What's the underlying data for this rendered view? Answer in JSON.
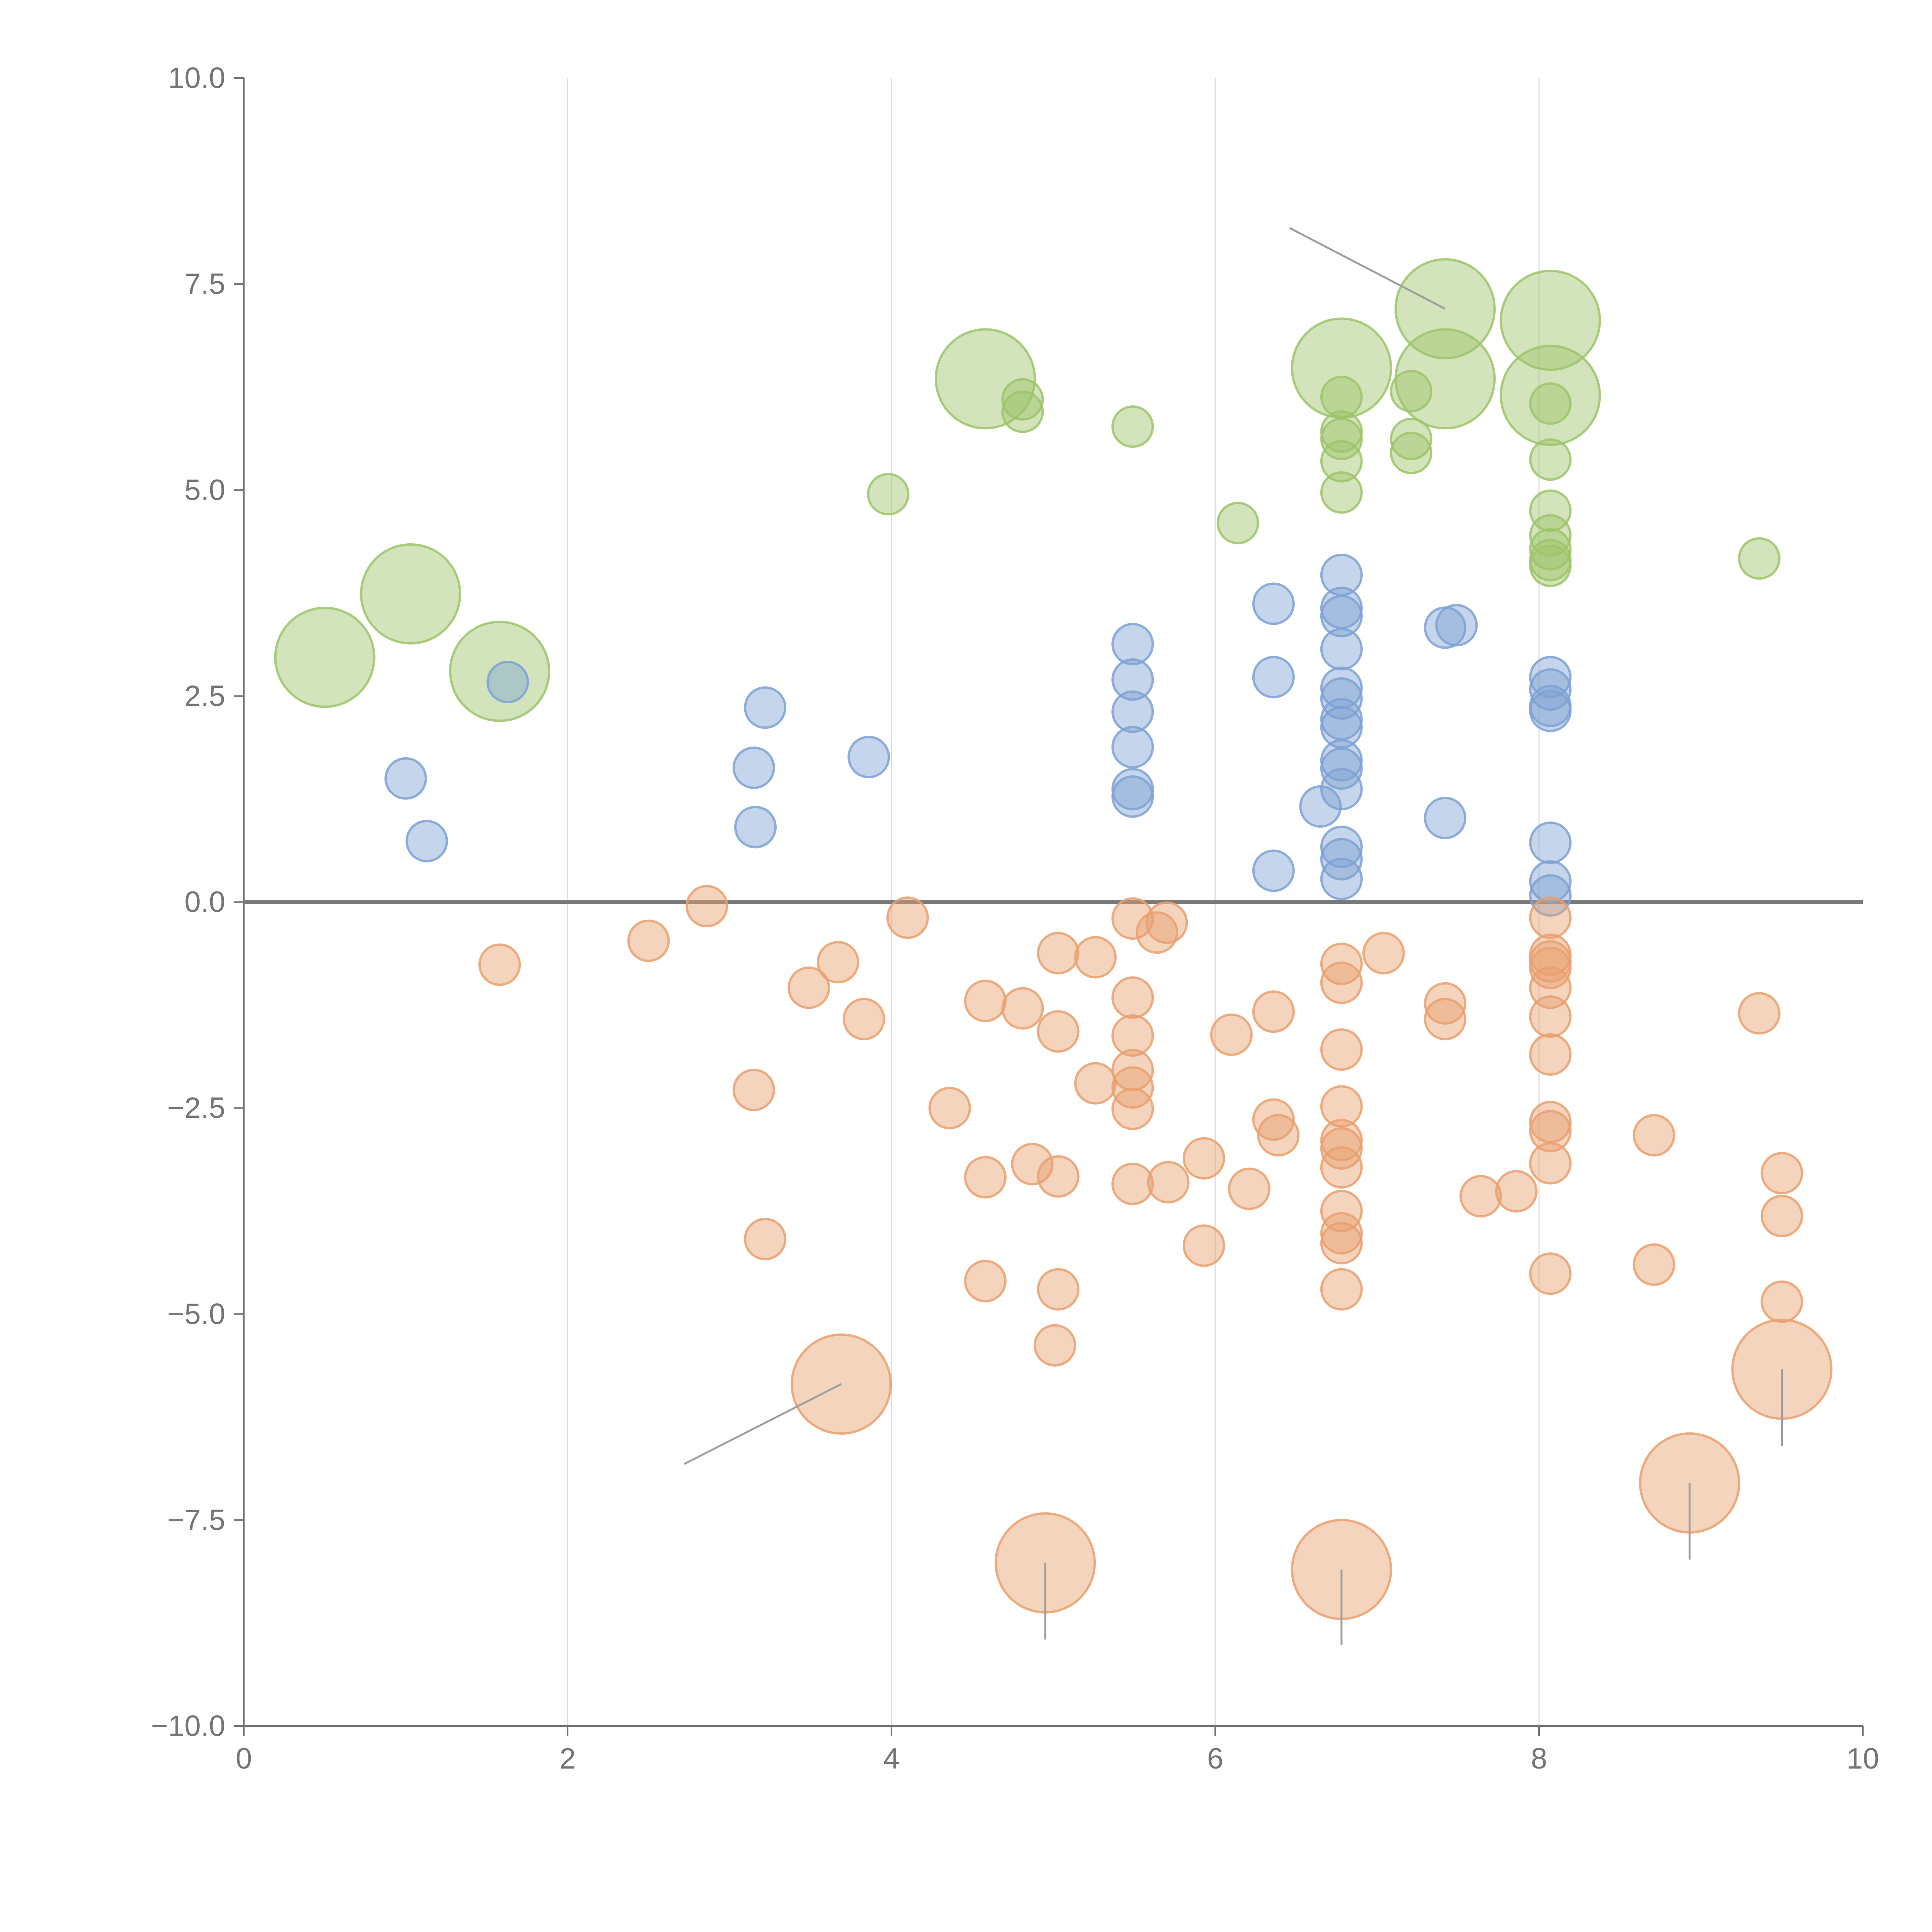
{
  "chart_data": {
    "type": "scatter",
    "title": "",
    "xlabel": "",
    "ylabel": "",
    "xlim": [
      0,
      10
    ],
    "ylim": [
      -10,
      10
    ],
    "grid": "vertical",
    "legend": "none",
    "x_ticks": [
      {
        "value": 0,
        "label": "0"
      },
      {
        "value": 2,
        "label": "2"
      },
      {
        "value": 4,
        "label": "4"
      },
      {
        "value": 6,
        "label": "6"
      },
      {
        "value": 8,
        "label": "8"
      },
      {
        "value": 10,
        "label": "10"
      }
    ],
    "y_ticks": [
      {
        "value": 10,
        "label": "10.0"
      },
      {
        "value": 7.5,
        "label": "7.5"
      },
      {
        "value": 5,
        "label": "5.0"
      },
      {
        "value": 2.5,
        "label": "2.5"
      },
      {
        "value": 0,
        "label": "0.0"
      },
      {
        "value": -2.5,
        "label": "−2.5"
      },
      {
        "value": -5,
        "label": "−5.0"
      },
      {
        "value": -7.5,
        "label": "−7.5"
      },
      {
        "value": -10,
        "label": "−10.0"
      }
    ],
    "zero_line": 0,
    "series": [
      {
        "name": "green",
        "color": "#9dc46a",
        "points": [
          {
            "x": 0.5,
            "y": 2.97,
            "s": "L"
          },
          {
            "x": 1.03,
            "y": 3.74,
            "s": "L"
          },
          {
            "x": 1.58,
            "y": 2.8,
            "s": "L"
          },
          {
            "x": 3.98,
            "y": 4.95,
            "s": "S"
          },
          {
            "x": 4.58,
            "y": 6.35,
            "s": "L"
          },
          {
            "x": 4.81,
            "y": 6.1,
            "s": "S"
          },
          {
            "x": 4.81,
            "y": 5.95,
            "s": "S"
          },
          {
            "x": 5.49,
            "y": 5.77,
            "s": "S"
          },
          {
            "x": 6.14,
            "y": 4.6,
            "s": "S"
          },
          {
            "x": 6.78,
            "y": 6.48,
            "s": "L"
          },
          {
            "x": 6.78,
            "y": 6.13,
            "s": "S"
          },
          {
            "x": 6.78,
            "y": 5.71,
            "s": "S"
          },
          {
            "x": 6.78,
            "y": 5.62,
            "s": "S"
          },
          {
            "x": 6.78,
            "y": 5.35,
            "s": "S"
          },
          {
            "x": 6.78,
            "y": 4.97,
            "s": "S"
          },
          {
            "x": 7.21,
            "y": 6.2,
            "s": "S"
          },
          {
            "x": 7.21,
            "y": 5.62,
            "s": "S"
          },
          {
            "x": 7.21,
            "y": 5.45,
            "s": "S"
          },
          {
            "x": 7.42,
            "y": 7.2,
            "s": "L"
          },
          {
            "x": 7.42,
            "y": 6.35,
            "s": "L"
          },
          {
            "x": 8.07,
            "y": 7.06,
            "s": "L"
          },
          {
            "x": 8.07,
            "y": 6.15,
            "s": "L"
          },
          {
            "x": 8.07,
            "y": 6.05,
            "s": "S"
          },
          {
            "x": 8.07,
            "y": 5.37,
            "s": "S"
          },
          {
            "x": 8.07,
            "y": 4.75,
            "s": "S"
          },
          {
            "x": 8.07,
            "y": 4.45,
            "s": "S"
          },
          {
            "x": 8.07,
            "y": 4.28,
            "s": "S"
          },
          {
            "x": 8.07,
            "y": 4.15,
            "s": "S"
          },
          {
            "x": 8.07,
            "y": 4.08,
            "s": "S"
          },
          {
            "x": 9.36,
            "y": 4.17,
            "s": "S"
          }
        ]
      },
      {
        "name": "blue",
        "color": "#7ea1d3",
        "points": [
          {
            "x": 1.0,
            "y": 1.5,
            "s": "S"
          },
          {
            "x": 1.13,
            "y": 0.74,
            "s": "S"
          },
          {
            "x": 1.63,
            "y": 2.67,
            "s": "S"
          },
          {
            "x": 3.15,
            "y": 1.63,
            "s": "S"
          },
          {
            "x": 3.16,
            "y": 0.91,
            "s": "S"
          },
          {
            "x": 3.22,
            "y": 2.36,
            "s": "S"
          },
          {
            "x": 3.86,
            "y": 1.76,
            "s": "S"
          },
          {
            "x": 5.49,
            "y": 3.13,
            "s": "S"
          },
          {
            "x": 5.49,
            "y": 2.7,
            "s": "S"
          },
          {
            "x": 5.49,
            "y": 2.31,
            "s": "S"
          },
          {
            "x": 5.49,
            "y": 1.88,
            "s": "S"
          },
          {
            "x": 5.49,
            "y": 1.37,
            "s": "S"
          },
          {
            "x": 5.49,
            "y": 1.28,
            "s": "S"
          },
          {
            "x": 6.36,
            "y": 3.62,
            "s": "S"
          },
          {
            "x": 6.36,
            "y": 2.73,
            "s": "S"
          },
          {
            "x": 6.36,
            "y": 0.38,
            "s": "S"
          },
          {
            "x": 6.65,
            "y": 1.16,
            "s": "S"
          },
          {
            "x": 6.78,
            "y": 3.97,
            "s": "S"
          },
          {
            "x": 6.78,
            "y": 3.57,
            "s": "S"
          },
          {
            "x": 6.78,
            "y": 3.47,
            "s": "S"
          },
          {
            "x": 6.78,
            "y": 3.07,
            "s": "S"
          },
          {
            "x": 6.78,
            "y": 2.6,
            "s": "S"
          },
          {
            "x": 6.78,
            "y": 2.47,
            "s": "S"
          },
          {
            "x": 6.78,
            "y": 2.22,
            "s": "S"
          },
          {
            "x": 6.78,
            "y": 2.12,
            "s": "S"
          },
          {
            "x": 6.78,
            "y": 1.72,
            "s": "S"
          },
          {
            "x": 6.78,
            "y": 1.62,
            "s": "S"
          },
          {
            "x": 6.78,
            "y": 1.37,
            "s": "S"
          },
          {
            "x": 6.78,
            "y": 0.67,
            "s": "S"
          },
          {
            "x": 6.78,
            "y": 0.52,
            "s": "S"
          },
          {
            "x": 6.78,
            "y": 0.28,
            "s": "S"
          },
          {
            "x": 7.42,
            "y": 3.33,
            "s": "S"
          },
          {
            "x": 7.49,
            "y": 3.36,
            "s": "S"
          },
          {
            "x": 7.42,
            "y": 1.02,
            "s": "S"
          },
          {
            "x": 8.07,
            "y": 2.73,
            "s": "S"
          },
          {
            "x": 8.07,
            "y": 2.58,
            "s": "S"
          },
          {
            "x": 8.07,
            "y": 2.38,
            "s": "S"
          },
          {
            "x": 8.07,
            "y": 2.32,
            "s": "S"
          },
          {
            "x": 8.07,
            "y": 0.72,
            "s": "S"
          },
          {
            "x": 8.07,
            "y": 0.25,
            "s": "S"
          },
          {
            "x": 8.07,
            "y": 0.08,
            "s": "S"
          }
        ]
      },
      {
        "name": "orange",
        "color": "#e9a06e",
        "points": [
          {
            "x": 1.58,
            "y": -0.76,
            "s": "S"
          },
          {
            "x": 2.5,
            "y": -0.47,
            "s": "S"
          },
          {
            "x": 2.86,
            "y": -0.05,
            "s": "S"
          },
          {
            "x": 3.15,
            "y": -2.28,
            "s": "S"
          },
          {
            "x": 3.22,
            "y": -4.09,
            "s": "S"
          },
          {
            "x": 3.49,
            "y": -1.04,
            "s": "S"
          },
          {
            "x": 3.67,
            "y": -0.73,
            "s": "S"
          },
          {
            "x": 3.69,
            "y": -5.85,
            "s": "L"
          },
          {
            "x": 3.83,
            "y": -1.42,
            "s": "S"
          },
          {
            "x": 4.1,
            "y": -0.19,
            "s": "S"
          },
          {
            "x": 4.36,
            "y": -2.5,
            "s": "S"
          },
          {
            "x": 4.58,
            "y": -1.2,
            "s": "S"
          },
          {
            "x": 4.58,
            "y": -3.34,
            "s": "S"
          },
          {
            "x": 4.58,
            "y": -4.6,
            "s": "S"
          },
          {
            "x": 4.81,
            "y": -1.29,
            "s": "S"
          },
          {
            "x": 4.87,
            "y": -3.18,
            "s": "S"
          },
          {
            "x": 4.95,
            "y": -8.02,
            "s": "L"
          },
          {
            "x": 5.03,
            "y": -0.62,
            "s": "S"
          },
          {
            "x": 5.03,
            "y": -1.57,
            "s": "S"
          },
          {
            "x": 5.03,
            "y": -3.33,
            "s": "S"
          },
          {
            "x": 5.03,
            "y": -4.7,
            "s": "S"
          },
          {
            "x": 5.01,
            "y": -5.38,
            "s": "S"
          },
          {
            "x": 5.26,
            "y": -0.67,
            "s": "S"
          },
          {
            "x": 5.26,
            "y": -2.2,
            "s": "S"
          },
          {
            "x": 5.49,
            "y": -0.2,
            "s": "S"
          },
          {
            "x": 5.49,
            "y": -1.16,
            "s": "S"
          },
          {
            "x": 5.49,
            "y": -1.62,
            "s": "S"
          },
          {
            "x": 5.49,
            "y": -2.04,
            "s": "S"
          },
          {
            "x": 5.49,
            "y": -2.25,
            "s": "S"
          },
          {
            "x": 5.49,
            "y": -2.51,
            "s": "S"
          },
          {
            "x": 5.49,
            "y": -3.42,
            "s": "S"
          },
          {
            "x": 5.64,
            "y": -0.37,
            "s": "S"
          },
          {
            "x": 5.7,
            "y": -0.25,
            "s": "S"
          },
          {
            "x": 5.71,
            "y": -3.4,
            "s": "S"
          },
          {
            "x": 5.93,
            "y": -3.11,
            "s": "S"
          },
          {
            "x": 5.93,
            "y": -4.17,
            "s": "S"
          },
          {
            "x": 6.1,
            "y": -1.61,
            "s": "S"
          },
          {
            "x": 6.21,
            "y": -3.48,
            "s": "S"
          },
          {
            "x": 6.36,
            "y": -1.33,
            "s": "S"
          },
          {
            "x": 6.36,
            "y": -2.64,
            "s": "S"
          },
          {
            "x": 6.39,
            "y": -2.83,
            "s": "S"
          },
          {
            "x": 6.78,
            "y": -0.75,
            "s": "S"
          },
          {
            "x": 6.78,
            "y": -0.98,
            "s": "S"
          },
          {
            "x": 6.78,
            "y": -1.79,
            "s": "S"
          },
          {
            "x": 6.78,
            "y": -2.48,
            "s": "S"
          },
          {
            "x": 6.78,
            "y": -2.89,
            "s": "S"
          },
          {
            "x": 6.78,
            "y": -2.99,
            "s": "S"
          },
          {
            "x": 6.78,
            "y": -3.22,
            "s": "S"
          },
          {
            "x": 6.78,
            "y": -3.75,
            "s": "S"
          },
          {
            "x": 6.78,
            "y": -4.02,
            "s": "S"
          },
          {
            "x": 6.78,
            "y": -4.14,
            "s": "S"
          },
          {
            "x": 6.78,
            "y": -4.7,
            "s": "S"
          },
          {
            "x": 6.78,
            "y": -8.1,
            "s": "L"
          },
          {
            "x": 7.04,
            "y": -0.62,
            "s": "S"
          },
          {
            "x": 7.42,
            "y": -1.23,
            "s": "S"
          },
          {
            "x": 7.42,
            "y": -1.42,
            "s": "S"
          },
          {
            "x": 7.64,
            "y": -3.57,
            "s": "S"
          },
          {
            "x": 7.86,
            "y": -3.51,
            "s": "S"
          },
          {
            "x": 8.07,
            "y": -0.19,
            "s": "S"
          },
          {
            "x": 8.07,
            "y": -0.64,
            "s": "S"
          },
          {
            "x": 8.07,
            "y": -0.72,
            "s": "S"
          },
          {
            "x": 8.07,
            "y": -0.8,
            "s": "S"
          },
          {
            "x": 8.07,
            "y": -1.04,
            "s": "S"
          },
          {
            "x": 8.07,
            "y": -1.39,
            "s": "S"
          },
          {
            "x": 8.07,
            "y": -1.85,
            "s": "S"
          },
          {
            "x": 8.07,
            "y": -2.67,
            "s": "S"
          },
          {
            "x": 8.07,
            "y": -2.78,
            "s": "S"
          },
          {
            "x": 8.07,
            "y": -3.17,
            "s": "S"
          },
          {
            "x": 8.07,
            "y": -4.51,
            "s": "S"
          },
          {
            "x": 8.71,
            "y": -2.83,
            "s": "S"
          },
          {
            "x": 8.71,
            "y": -4.4,
            "s": "S"
          },
          {
            "x": 8.93,
            "y": -7.05,
            "s": "L"
          },
          {
            "x": 9.36,
            "y": -1.35,
            "s": "S"
          },
          {
            "x": 9.5,
            "y": -3.29,
            "s": "S"
          },
          {
            "x": 9.5,
            "y": -3.81,
            "s": "S"
          },
          {
            "x": 9.5,
            "y": -4.85,
            "s": "S"
          },
          {
            "x": 9.5,
            "y": -5.67,
            "s": "L"
          }
        ]
      }
    ],
    "leader_lines": [
      {
        "from": {
          "x": 7.42,
          "y": 7.2
        },
        "to": {
          "x": 6.46,
          "y": 8.18
        }
      },
      {
        "from": {
          "x": 3.69,
          "y": -5.85
        },
        "to": {
          "x": 2.72,
          "y": -6.82
        }
      },
      {
        "from": {
          "x": 4.95,
          "y": -8.02
        },
        "to": {
          "x": 4.95,
          "y": -8.95
        }
      },
      {
        "from": {
          "x": 6.78,
          "y": -8.1
        },
        "to": {
          "x": 6.78,
          "y": -9.02
        }
      },
      {
        "from": {
          "x": 8.93,
          "y": -7.05
        },
        "to": {
          "x": 8.93,
          "y": -7.98
        }
      },
      {
        "from": {
          "x": 9.5,
          "y": -5.67
        },
        "to": {
          "x": 9.5,
          "y": -6.6
        }
      }
    ]
  }
}
